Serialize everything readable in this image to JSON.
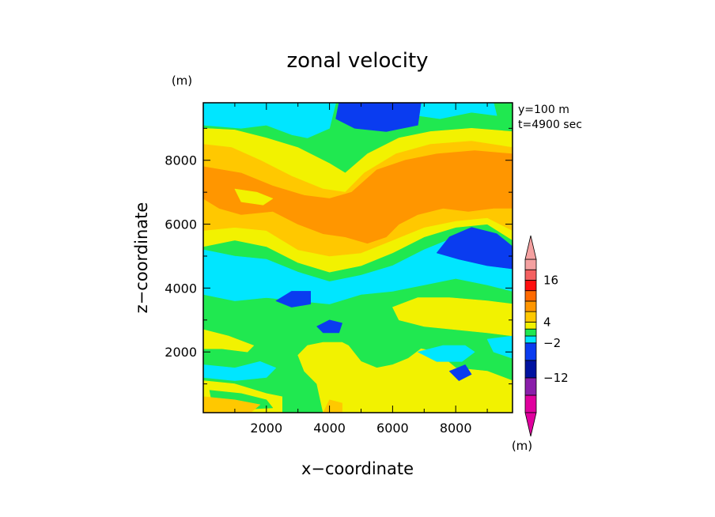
{
  "chart_data": {
    "type": "heatmap",
    "title": "zonal velocity",
    "xlabel": "x−coordinate",
    "ylabel": "z−coordinate",
    "y_unit": "(m)",
    "colorbar_unit": "(m)",
    "annotations": [
      "y=100 m",
      "t=4900 sec"
    ],
    "x_ticks": [
      "2000",
      "4000",
      "6000",
      "8000"
    ],
    "y_ticks": [
      "2000",
      "4000",
      "6000",
      "8000"
    ],
    "xlim": [
      0,
      9800
    ],
    "ylim": [
      100,
      9800
    ],
    "grid": false,
    "legend": "right",
    "colorbar": {
      "labels": [
        {
          "value": 16,
          "text": "16"
        },
        {
          "value": 4,
          "text": "4"
        },
        {
          "value": -2,
          "text": "−2"
        },
        {
          "value": -12,
          "text": "−12"
        }
      ],
      "levels": [
        {
          "lo": -22,
          "hi": -17,
          "color": "#e0009e"
        },
        {
          "lo": -17,
          "hi": -12,
          "color": "#8a1eaa"
        },
        {
          "lo": -12,
          "hi": -7,
          "color": "#0012a0"
        },
        {
          "lo": -7,
          "hi": -2,
          "color": "#0a3cf0"
        },
        {
          "lo": -2,
          "hi": 0,
          "color": "#00e6ff"
        },
        {
          "lo": 0,
          "hi": 2,
          "color": "#20e850"
        },
        {
          "lo": 2,
          "hi": 4,
          "color": "#f2f200"
        },
        {
          "lo": 4,
          "hi": 7,
          "color": "#ffc800"
        },
        {
          "lo": 7,
          "hi": 10,
          "color": "#ff9600"
        },
        {
          "lo": 10,
          "hi": 13,
          "color": "#ff6a00"
        },
        {
          "lo": 13,
          "hi": 16,
          "color": "#ff0f0f"
        },
        {
          "lo": 16,
          "hi": 19,
          "color": "#f46060"
        },
        {
          "lo": 19,
          "hi": 22,
          "color": "#f4a0a0"
        }
      ],
      "min_extension_color": "#e0009e",
      "max_extension_color": "#f4a0a0"
    },
    "field_regions": [
      {
        "color": "#20e850",
        "points": [
          [
            0,
            100
          ],
          [
            9800,
            100
          ],
          [
            9800,
            9800
          ],
          [
            0,
            9800
          ]
        ]
      },
      {
        "color": "#00e6ff",
        "points": [
          [
            0,
            9800
          ],
          [
            4200,
            9800
          ],
          [
            4000,
            9000
          ],
          [
            3300,
            8700
          ],
          [
            2800,
            8800
          ],
          [
            2000,
            9100
          ],
          [
            1200,
            9000
          ],
          [
            0,
            9100
          ]
        ]
      },
      {
        "color": "#00e6ff",
        "points": [
          [
            6800,
            9800
          ],
          [
            9200,
            9800
          ],
          [
            9300,
            9400
          ],
          [
            8500,
            9500
          ],
          [
            7500,
            9300
          ],
          [
            6800,
            9400
          ]
        ]
      },
      {
        "color": "#f2f200",
        "points": [
          [
            0,
            9000
          ],
          [
            1000,
            8950
          ],
          [
            2000,
            8700
          ],
          [
            3000,
            8400
          ],
          [
            4000,
            7900
          ],
          [
            4500,
            7600
          ],
          [
            5200,
            8200
          ],
          [
            6200,
            8700
          ],
          [
            7200,
            8900
          ],
          [
            8500,
            9000
          ],
          [
            9800,
            8900
          ],
          [
            9800,
            5500
          ],
          [
            9000,
            6000
          ],
          [
            8000,
            5900
          ],
          [
            7000,
            5600
          ],
          [
            6000,
            5100
          ],
          [
            5000,
            4700
          ],
          [
            4000,
            4500
          ],
          [
            3000,
            4800
          ],
          [
            2000,
            5300
          ],
          [
            1000,
            5500
          ],
          [
            0,
            5300
          ]
        ]
      },
      {
        "color": "#ffc800",
        "points": [
          [
            0,
            8500
          ],
          [
            900,
            8400
          ],
          [
            1800,
            8000
          ],
          [
            2800,
            7500
          ],
          [
            3800,
            7100
          ],
          [
            4500,
            7000
          ],
          [
            5100,
            7600
          ],
          [
            6100,
            8200
          ],
          [
            7200,
            8500
          ],
          [
            8500,
            8600
          ],
          [
            9800,
            8400
          ],
          [
            9800,
            5800
          ],
          [
            9000,
            6200
          ],
          [
            8000,
            6100
          ],
          [
            7000,
            5900
          ],
          [
            6000,
            5500
          ],
          [
            5000,
            5100
          ],
          [
            4000,
            5000
          ],
          [
            3000,
            5200
          ],
          [
            2000,
            5800
          ],
          [
            1000,
            5900
          ],
          [
            0,
            5800
          ]
        ]
      },
      {
        "color": "#ff9600",
        "points": [
          [
            0,
            7800
          ],
          [
            1200,
            7600
          ],
          [
            2200,
            7200
          ],
          [
            3200,
            6900
          ],
          [
            4000,
            6800
          ],
          [
            4700,
            7000
          ],
          [
            5500,
            7700
          ],
          [
            6400,
            8000
          ],
          [
            7400,
            8200
          ],
          [
            8600,
            8300
          ],
          [
            9800,
            8200
          ],
          [
            9800,
            6500
          ],
          [
            9200,
            6500
          ],
          [
            8400,
            6400
          ],
          [
            7600,
            6500
          ],
          [
            6800,
            6300
          ],
          [
            6200,
            6000
          ],
          [
            5800,
            5600
          ],
          [
            5200,
            5400
          ],
          [
            4500,
            5600
          ],
          [
            3800,
            5700
          ],
          [
            3000,
            6000
          ],
          [
            2200,
            6400
          ],
          [
            1200,
            6300
          ],
          [
            500,
            6500
          ],
          [
            0,
            6800
          ]
        ]
      },
      {
        "color": "#f2f200",
        "points": [
          [
            1000,
            7100
          ],
          [
            1700,
            7000
          ],
          [
            2200,
            6800
          ],
          [
            1900,
            6600
          ],
          [
            1200,
            6700
          ]
        ]
      },
      {
        "color": "#0a3cf0",
        "points": [
          [
            4300,
            9800
          ],
          [
            6900,
            9800
          ],
          [
            6800,
            9100
          ],
          [
            5800,
            8900
          ],
          [
            4800,
            9000
          ],
          [
            4200,
            9300
          ]
        ]
      },
      {
        "color": "#00e6ff",
        "points": [
          [
            0,
            5200
          ],
          [
            1000,
            5000
          ],
          [
            2000,
            4900
          ],
          [
            3000,
            4500
          ],
          [
            4000,
            4200
          ],
          [
            5000,
            4400
          ],
          [
            6000,
            4700
          ],
          [
            7000,
            5200
          ],
          [
            8000,
            5600
          ],
          [
            9000,
            5600
          ],
          [
            9800,
            5300
          ],
          [
            9800,
            3900
          ],
          [
            9000,
            4100
          ],
          [
            8000,
            4300
          ],
          [
            7000,
            4100
          ],
          [
            6000,
            3900
          ],
          [
            5000,
            3800
          ],
          [
            4000,
            3500
          ],
          [
            3000,
            3600
          ],
          [
            2000,
            3700
          ],
          [
            1000,
            3600
          ],
          [
            0,
            3800
          ]
        ]
      },
      {
        "color": "#0a3cf0",
        "points": [
          [
            7400,
            5100
          ],
          [
            7800,
            5600
          ],
          [
            8500,
            5900
          ],
          [
            9300,
            5700
          ],
          [
            9800,
            5300
          ],
          [
            9800,
            4600
          ],
          [
            9000,
            4700
          ],
          [
            8100,
            4900
          ]
        ]
      },
      {
        "color": "#0a3cf0",
        "points": [
          [
            2300,
            3600
          ],
          [
            2800,
            3900
          ],
          [
            3400,
            3900
          ],
          [
            3400,
            3500
          ],
          [
            2800,
            3400
          ]
        ]
      },
      {
        "color": "#0a3cf0",
        "points": [
          [
            3600,
            2800
          ],
          [
            4000,
            3000
          ],
          [
            4400,
            2900
          ],
          [
            4300,
            2600
          ],
          [
            3800,
            2600
          ]
        ]
      },
      {
        "color": "#f2f200",
        "points": [
          [
            6000,
            3400
          ],
          [
            6800,
            3700
          ],
          [
            7800,
            3700
          ],
          [
            9000,
            3600
          ],
          [
            9800,
            3500
          ],
          [
            9800,
            2500
          ],
          [
            9000,
            2600
          ],
          [
            8000,
            2700
          ],
          [
            7000,
            2800
          ],
          [
            6200,
            3000
          ]
        ]
      },
      {
        "color": "#f2f200",
        "points": [
          [
            3800,
            100
          ],
          [
            9800,
            100
          ],
          [
            9800,
            1100
          ],
          [
            9000,
            1400
          ],
          [
            8000,
            1500
          ],
          [
            7400,
            2000
          ],
          [
            6900,
            2100
          ],
          [
            6500,
            1800
          ],
          [
            6000,
            1600
          ],
          [
            5500,
            1500
          ],
          [
            5000,
            1700
          ],
          [
            4600,
            2200
          ],
          [
            4400,
            2300
          ],
          [
            3800,
            2300
          ],
          [
            3300,
            2200
          ],
          [
            3000,
            1900
          ],
          [
            3200,
            1400
          ],
          [
            3600,
            1000
          ]
        ]
      },
      {
        "color": "#f2f200",
        "points": [
          [
            0,
            2700
          ],
          [
            800,
            2500
          ],
          [
            1600,
            2200
          ],
          [
            1400,
            2000
          ],
          [
            600,
            2100
          ],
          [
            0,
            2100
          ]
        ]
      },
      {
        "color": "#f2f200",
        "points": [
          [
            0,
            1100
          ],
          [
            1000,
            1000
          ],
          [
            2000,
            700
          ],
          [
            2500,
            600
          ],
          [
            2500,
            100
          ],
          [
            0,
            100
          ]
        ]
      },
      {
        "color": "#00e6ff",
        "points": [
          [
            0,
            1600
          ],
          [
            1000,
            1500
          ],
          [
            1800,
            1700
          ],
          [
            2300,
            1500
          ],
          [
            2000,
            1200
          ],
          [
            1000,
            1100
          ],
          [
            0,
            1200
          ]
        ]
      },
      {
        "color": "#20e850",
        "points": [
          [
            200,
            800
          ],
          [
            1200,
            700
          ],
          [
            2000,
            500
          ],
          [
            2200,
            250
          ],
          [
            1200,
            200
          ],
          [
            300,
            300
          ]
        ]
      },
      {
        "color": "#ffc800",
        "points": [
          [
            0,
            600
          ],
          [
            1000,
            500
          ],
          [
            1800,
            350
          ],
          [
            1500,
            100
          ],
          [
            0,
            100
          ]
        ]
      },
      {
        "color": "#ffc800",
        "points": [
          [
            3800,
            100
          ],
          [
            4400,
            100
          ],
          [
            4400,
            400
          ],
          [
            4000,
            500
          ]
        ]
      },
      {
        "color": "#00e6ff",
        "points": [
          [
            6800,
            2000
          ],
          [
            7600,
            2200
          ],
          [
            8300,
            2200
          ],
          [
            8600,
            2000
          ],
          [
            8200,
            1700
          ],
          [
            7400,
            1700
          ]
        ]
      },
      {
        "color": "#00e6ff",
        "points": [
          [
            9000,
            2400
          ],
          [
            9800,
            2500
          ],
          [
            9800,
            1800
          ],
          [
            9200,
            2000
          ]
        ]
      },
      {
        "color": "#0a3cf0",
        "points": [
          [
            7800,
            1400
          ],
          [
            8300,
            1600
          ],
          [
            8500,
            1300
          ],
          [
            8100,
            1100
          ]
        ]
      }
    ]
  }
}
